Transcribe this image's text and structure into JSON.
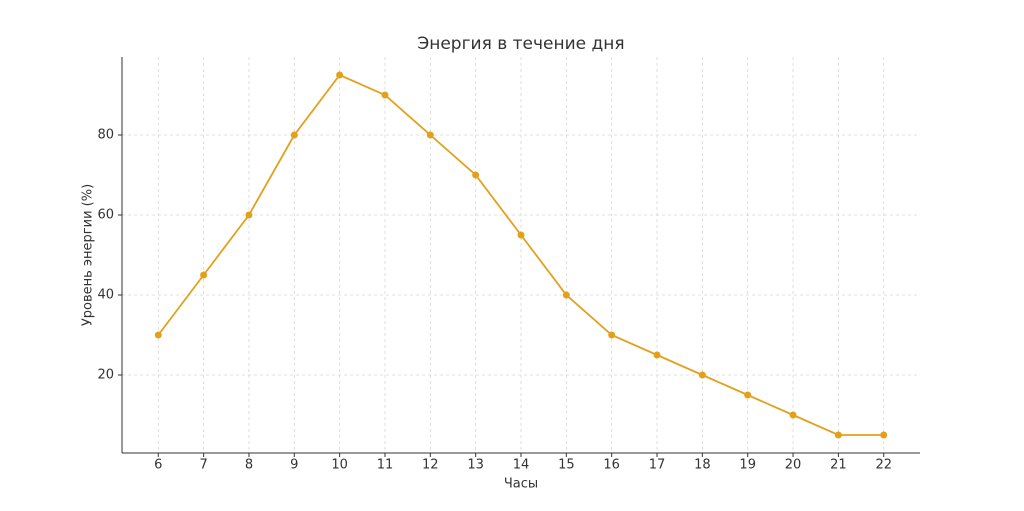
{
  "chart_data": {
    "type": "line",
    "title": "Энергия в течение дня",
    "x_label": "Часы",
    "y_label": "Уровень энергии (%)",
    "x": [
      6,
      7,
      8,
      9,
      10,
      11,
      12,
      13,
      14,
      15,
      16,
      17,
      18,
      19,
      20,
      21,
      22
    ],
    "values": [
      30,
      45,
      60,
      80,
      95,
      90,
      80,
      70,
      55,
      40,
      30,
      25,
      20,
      15,
      10,
      5,
      5
    ],
    "color": "#e3a01b",
    "xlim": [
      5.2,
      22.8
    ],
    "xticks": [
      6,
      7,
      8,
      9,
      10,
      11,
      12,
      13,
      14,
      15,
      16,
      17,
      18,
      19,
      20,
      21,
      22
    ],
    "ylim": [
      0.5,
      99.5
    ],
    "yticks": [
      20,
      40,
      60,
      80
    ],
    "grid": true
  }
}
